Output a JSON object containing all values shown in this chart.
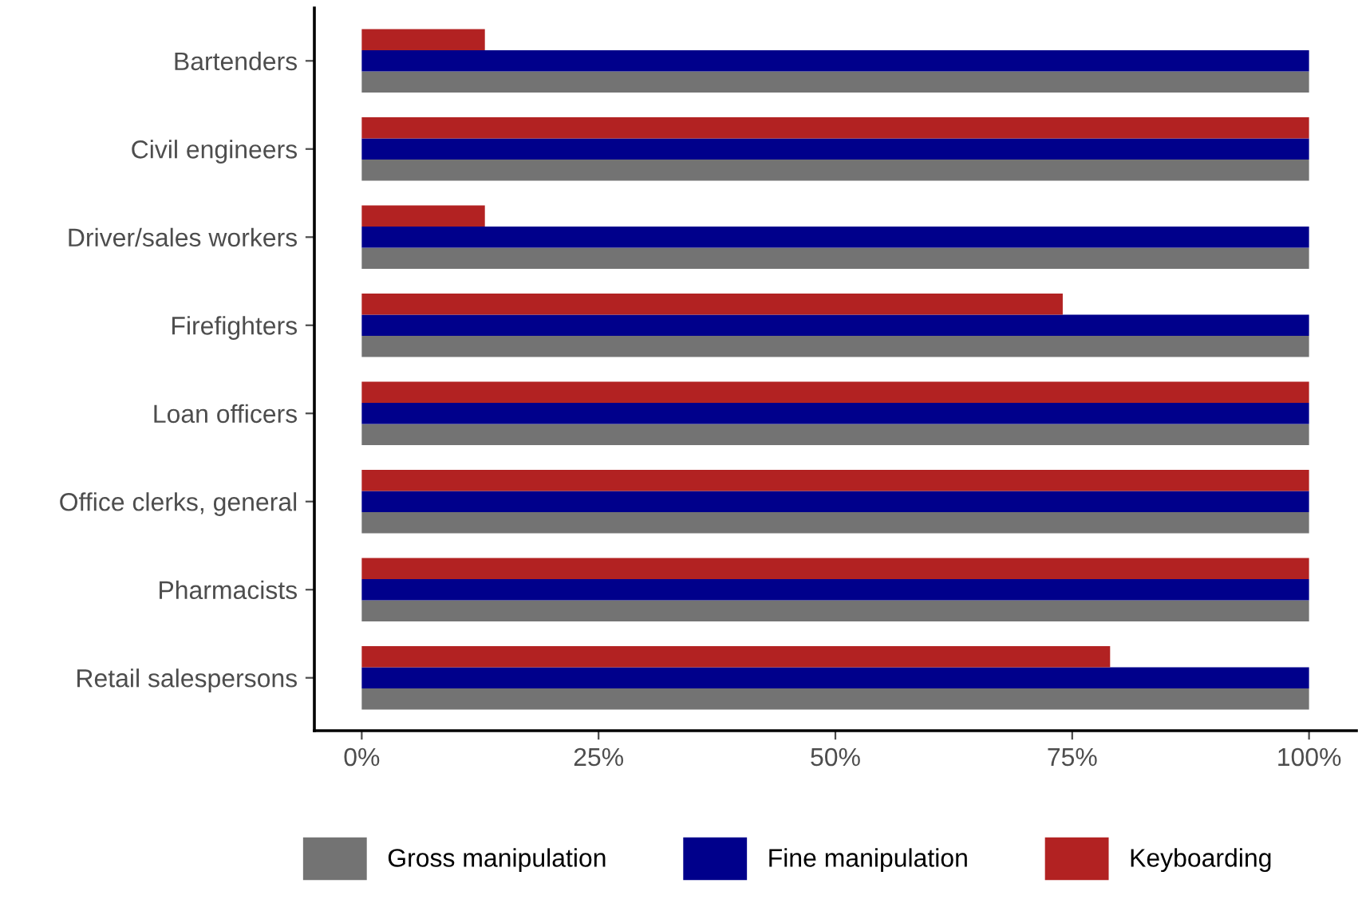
{
  "chart_data": {
    "type": "bar",
    "orientation": "horizontal",
    "categories": [
      "Bartenders",
      "Civil engineers",
      "Driver/sales workers",
      "Firefighters",
      "Loan officers",
      "Office clerks, general",
      "Pharmacists",
      "Retail salespersons"
    ],
    "series": [
      {
        "name": "Gross manipulation",
        "color": "#737373",
        "values": [
          100,
          100,
          100,
          100,
          100,
          100,
          100,
          100
        ]
      },
      {
        "name": "Fine manipulation",
        "color": "#00008b",
        "values": [
          100,
          100,
          100,
          100,
          100,
          100,
          100,
          100
        ]
      },
      {
        "name": "Keyboarding",
        "color": "#b22222",
        "values": [
          13,
          100,
          13,
          74,
          100,
          100,
          100,
          79
        ]
      }
    ],
    "xlim": [
      -5,
      105
    ],
    "xticks": [
      {
        "value": 0,
        "label": "0%"
      },
      {
        "value": 25,
        "label": "25%"
      },
      {
        "value": 50,
        "label": "50%"
      },
      {
        "value": 75,
        "label": "75%"
      },
      {
        "value": 100,
        "label": "100%"
      }
    ],
    "grid": false,
    "legend": "bottom"
  }
}
